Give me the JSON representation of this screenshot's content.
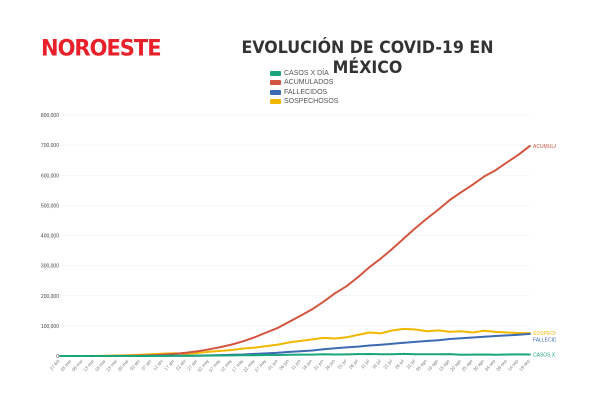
{
  "brand": {
    "logo": "NOROESTE",
    "color": "#e8202a"
  },
  "chart_data": {
    "type": "line",
    "title": "EVOLUCIÓN DE COVID-19 EN MÉXICO",
    "xlabel": "",
    "ylabel": "",
    "ylim": [
      0,
      800000
    ],
    "yticks": [
      0,
      100000,
      200000,
      300000,
      400000,
      500000,
      600000,
      700000,
      800000
    ],
    "ytick_labels": [
      "0",
      "100,000",
      "200,000",
      "300,000",
      "400,000",
      "500,000",
      "600,000",
      "700,000",
      "800,000"
    ],
    "grid": true,
    "legend_position": "top-center",
    "categories": [
      "27 feb",
      "03 mar",
      "08 mar",
      "13 mar",
      "18 mar",
      "23 mar",
      "28 mar",
      "02 abr",
      "07 abr",
      "12 abr",
      "17 abr",
      "22 abr",
      "27 abr",
      "02 may",
      "07 may",
      "12 may",
      "17 may",
      "22 may",
      "27 may",
      "01 jun",
      "06 jun",
      "11 jun",
      "16 jun",
      "21 jun",
      "26 jun",
      "01 jul",
      "06 jul",
      "11 jul",
      "16 jul",
      "21 jul",
      "26 jul",
      "31 jul",
      "05 ago",
      "10 ago",
      "15 ago",
      "20 ago",
      "25 ago",
      "30 ago",
      "04 sep",
      "09 sep",
      "14 sep",
      "19 sep"
    ],
    "series": [
      {
        "name": "CASOS X DÍA",
        "end_label": "CASOS X DÍA",
        "color": "#1aa67a",
        "values": [
          0,
          1,
          1,
          5,
          25,
          50,
          120,
          150,
          300,
          450,
          500,
          800,
          1000,
          1400,
          1600,
          1900,
          2400,
          2700,
          3400,
          3300,
          4400,
          4800,
          4600,
          5700,
          5000,
          5200,
          6400,
          6500,
          5700,
          6000,
          7000,
          5700,
          6100,
          5800,
          6300,
          4400,
          4500,
          5000,
          4300,
          5100,
          5400,
          5000
        ]
      },
      {
        "name": "ACUMULADOS",
        "end_label": "ACUMULADOS",
        "color": "#d2553f",
        "values": [
          1,
          5,
          7,
          26,
          118,
          367,
          848,
          1510,
          2785,
          4661,
          6875,
          10544,
          15529,
          22088,
          29616,
          38324,
          49219,
          62527,
          78023,
          93435,
          113619,
          133974,
          154863,
          180545,
          208392,
          231770,
          261750,
          295268,
          324041,
          356255,
          390516,
          424637,
          456100,
          485836,
          517714,
          543806,
          568621,
          595841,
          616894,
          642860,
          668381,
          697663
        ]
      },
      {
        "name": "FALLECIDOS",
        "end_label": "FALLECIDOS",
        "color": "#3d6bb3",
        "values": [
          0,
          0,
          0,
          0,
          0,
          4,
          16,
          79,
          194,
          332,
          546,
          970,
          1434,
          2061,
          2961,
          3926,
          5045,
          6989,
          8597,
          10637,
          13511,
          15944,
          18310,
          22584,
          25779,
          28510,
          31119,
          34730,
          37574,
          40400,
          43680,
          46688,
          49698,
          52298,
          56543,
          59106,
          61450,
          64158,
          66329,
          68484,
          70604,
          73258
        ]
      },
      {
        "name": "SOSPECHOSOS",
        "end_label": "SOSPECHOSOS",
        "color": "#f0b800",
        "values": [
          0,
          10,
          50,
          200,
          700,
          1500,
          2500,
          4000,
          6000,
          8000,
          9000,
          7000,
          10000,
          14000,
          17000,
          20000,
          25000,
          28000,
          33000,
          38000,
          45000,
          50000,
          55000,
          60000,
          58000,
          62000,
          70000,
          78000,
          75000,
          85000,
          90000,
          88000,
          82000,
          85000,
          80000,
          82000,
          78000,
          84000,
          80000,
          78000,
          76000,
          76000
        ]
      }
    ]
  }
}
